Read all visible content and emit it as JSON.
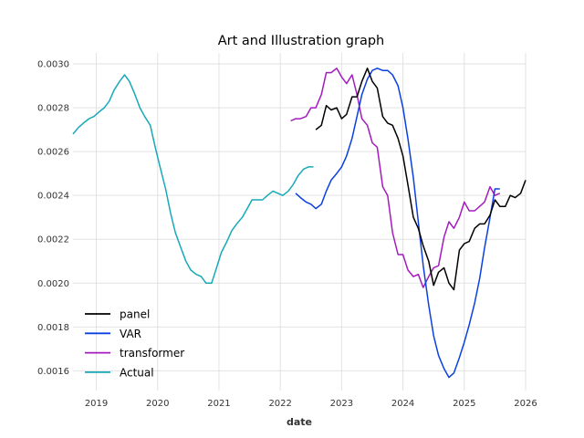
{
  "chart_data": {
    "type": "line",
    "title": "Art and Illustration graph",
    "xlabel": "date",
    "ylabel": "",
    "xlim": [
      2018.62,
      2026.0
    ],
    "ylim": [
      0.00151,
      0.00305
    ],
    "x_ticks": [
      2019,
      2020,
      2021,
      2022,
      2023,
      2024,
      2025,
      2026
    ],
    "x_tick_labels": [
      "2019",
      "2020",
      "2021",
      "2022",
      "2023",
      "2024",
      "2025",
      "2026"
    ],
    "y_ticks": [
      0.0016,
      0.0018,
      0.002,
      0.0022,
      0.0024,
      0.0026,
      0.0028,
      0.003
    ],
    "y_tick_labels": [
      "0.0016",
      "0.0018",
      "0.0020",
      "0.0022",
      "0.0024",
      "0.0026",
      "0.0028",
      "0.0030"
    ],
    "grid": true,
    "legend_position": "lower-left",
    "series": [
      {
        "name": "panel",
        "color": "#000000",
        "x": [
          2022.58,
          2022.67,
          2022.75,
          2022.83,
          2022.92,
          2023.0,
          2023.08,
          2023.17,
          2023.25,
          2023.33,
          2023.42,
          2023.5,
          2023.58,
          2023.67,
          2023.75,
          2023.83,
          2023.92,
          2024.0,
          2024.08,
          2024.17,
          2024.25,
          2024.33,
          2024.42,
          2024.5,
          2024.58,
          2024.67,
          2024.75,
          2024.83,
          2024.92,
          2025.0,
          2025.08,
          2025.17,
          2025.25,
          2025.33,
          2025.42,
          2025.5,
          2025.58,
          2025.67,
          2025.75,
          2025.83,
          2025.92,
          2026.0
        ],
        "values": [
          0.0027,
          0.00272,
          0.00281,
          0.00279,
          0.0028,
          0.00275,
          0.00277,
          0.00285,
          0.00285,
          0.00292,
          0.00298,
          0.00292,
          0.00289,
          0.00276,
          0.00273,
          0.00272,
          0.00266,
          0.00258,
          0.00245,
          0.0023,
          0.00225,
          0.00217,
          0.0021,
          0.00199,
          0.00205,
          0.00207,
          0.002,
          0.00197,
          0.00215,
          0.00218,
          0.00219,
          0.00225,
          0.00227,
          0.00227,
          0.00231,
          0.00238,
          0.00235,
          0.00235,
          0.0024,
          0.00239,
          0.00241,
          0.00247
        ]
      },
      {
        "name": "VAR",
        "color": "#0b40e0",
        "x": [
          2022.25,
          2022.33,
          2022.42,
          2022.5,
          2022.58,
          2022.67,
          2022.75,
          2022.83,
          2022.92,
          2023.0,
          2023.08,
          2023.17,
          2023.25,
          2023.33,
          2023.42,
          2023.5,
          2023.58,
          2023.67,
          2023.75,
          2023.83,
          2023.92,
          2024.0,
          2024.08,
          2024.17,
          2024.25,
          2024.33,
          2024.42,
          2024.5,
          2024.58,
          2024.67,
          2024.75,
          2024.83,
          2024.92,
          2025.0,
          2025.08,
          2025.17,
          2025.25,
          2025.33,
          2025.42,
          2025.5,
          2025.58
        ],
        "values": [
          0.00241,
          0.00239,
          0.00237,
          0.00236,
          0.00234,
          0.00236,
          0.00242,
          0.00247,
          0.0025,
          0.00253,
          0.00258,
          0.00266,
          0.00276,
          0.00286,
          0.00293,
          0.00297,
          0.00298,
          0.00297,
          0.00297,
          0.00295,
          0.0029,
          0.0028,
          0.00266,
          0.00248,
          0.00228,
          0.00208,
          0.0019,
          0.00176,
          0.00167,
          0.00161,
          0.00157,
          0.00159,
          0.00166,
          0.00173,
          0.00181,
          0.00191,
          0.00202,
          0.00216,
          0.0023,
          0.00243,
          0.00243
        ]
      },
      {
        "name": "transformer",
        "color": "#a31bbd",
        "x": [
          2022.17,
          2022.25,
          2022.33,
          2022.42,
          2022.5,
          2022.58,
          2022.67,
          2022.75,
          2022.83,
          2022.92,
          2023.0,
          2023.08,
          2023.17,
          2023.25,
          2023.33,
          2023.42,
          2023.5,
          2023.58,
          2023.67,
          2023.75,
          2023.83,
          2023.92,
          2024.0,
          2024.08,
          2024.17,
          2024.25,
          2024.33,
          2024.42,
          2024.5,
          2024.58,
          2024.67,
          2024.75,
          2024.83,
          2024.92,
          2025.0,
          2025.08,
          2025.17,
          2025.25,
          2025.33,
          2025.42,
          2025.5,
          2025.58
        ],
        "values": [
          0.00274,
          0.00275,
          0.00275,
          0.00276,
          0.0028,
          0.0028,
          0.00286,
          0.00296,
          0.00296,
          0.00298,
          0.00294,
          0.00291,
          0.00295,
          0.00286,
          0.00275,
          0.00272,
          0.00264,
          0.00262,
          0.00244,
          0.0024,
          0.00223,
          0.00213,
          0.00213,
          0.00206,
          0.00203,
          0.00204,
          0.00198,
          0.00203,
          0.00207,
          0.00208,
          0.00221,
          0.00228,
          0.00225,
          0.0023,
          0.00237,
          0.00233,
          0.00233,
          0.00235,
          0.00237,
          0.00244,
          0.0024,
          0.00241
        ]
      },
      {
        "name": "Actual",
        "color": "#17a9b8",
        "x": [
          2018.62,
          2018.71,
          2018.79,
          2018.88,
          2018.96,
          2019.04,
          2019.13,
          2019.21,
          2019.29,
          2019.38,
          2019.46,
          2019.54,
          2019.63,
          2019.71,
          2019.79,
          2019.88,
          2019.96,
          2020.04,
          2020.13,
          2020.21,
          2020.29,
          2020.38,
          2020.46,
          2020.54,
          2020.63,
          2020.71,
          2020.79,
          2020.88,
          2020.96,
          2021.04,
          2021.13,
          2021.21,
          2021.29,
          2021.38,
          2021.46,
          2021.54,
          2021.63,
          2021.71,
          2021.79,
          2021.88,
          2021.96,
          2022.04,
          2022.13,
          2022.21,
          2022.29,
          2022.38,
          2022.46,
          2022.54
        ],
        "values": [
          0.00268,
          0.00271,
          0.00273,
          0.00275,
          0.00276,
          0.00278,
          0.0028,
          0.00283,
          0.00288,
          0.00292,
          0.00295,
          0.00292,
          0.00286,
          0.0028,
          0.00276,
          0.00272,
          0.00262,
          0.00253,
          0.00243,
          0.00232,
          0.00223,
          0.00216,
          0.0021,
          0.00206,
          0.00204,
          0.00203,
          0.002,
          0.002,
          0.00207,
          0.00214,
          0.00219,
          0.00224,
          0.00227,
          0.0023,
          0.00234,
          0.00238,
          0.00238,
          0.00238,
          0.0024,
          0.00242,
          0.00241,
          0.0024,
          0.00242,
          0.00245,
          0.00249,
          0.00252,
          0.00253,
          0.00253
        ]
      }
    ]
  }
}
